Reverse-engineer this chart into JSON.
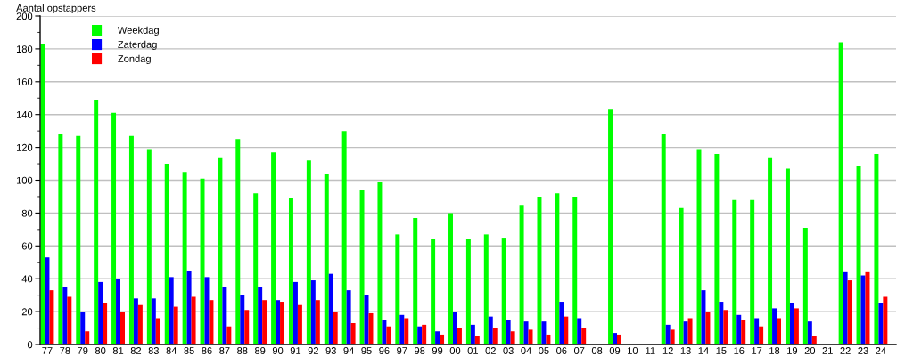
{
  "chart_data": {
    "type": "bar",
    "ylabel": "Aantal opstappers",
    "categories": [
      "77",
      "78",
      "79",
      "80",
      "81",
      "82",
      "83",
      "84",
      "85",
      "86",
      "87",
      "88",
      "89",
      "90",
      "91",
      "92",
      "93",
      "94",
      "95",
      "96",
      "97",
      "98",
      "99",
      "00",
      "01",
      "02",
      "03",
      "04",
      "05",
      "06",
      "07",
      "08",
      "09",
      "10",
      "11",
      "12",
      "13",
      "14",
      "15",
      "16",
      "17",
      "18",
      "19",
      "20",
      "21",
      "22",
      "23",
      "24"
    ],
    "series": [
      {
        "name": "Weekdag",
        "color": "#00ff00",
        "values": [
          183,
          128,
          127,
          149,
          141,
          127,
          119,
          110,
          105,
          101,
          114,
          125,
          92,
          117,
          89,
          112,
          104,
          130,
          94,
          99,
          67,
          77,
          64,
          80,
          64,
          67,
          65,
          85,
          90,
          92,
          90,
          null,
          143,
          null,
          null,
          128,
          83,
          119,
          116,
          88,
          88,
          114,
          107,
          71,
          null,
          184,
          109,
          116
        ]
      },
      {
        "name": "Zaterdag",
        "color": "#0000ff",
        "values": [
          53,
          35,
          20,
          38,
          40,
          28,
          28,
          41,
          45,
          41,
          35,
          30,
          35,
          27,
          38,
          39,
          43,
          33,
          30,
          15,
          18,
          11,
          8,
          20,
          12,
          17,
          15,
          14,
          14,
          26,
          16,
          null,
          7,
          null,
          null,
          12,
          14,
          33,
          26,
          18,
          16,
          22,
          25,
          14,
          null,
          44,
          42,
          25
        ]
      },
      {
        "name": "Zondag",
        "color": "#ff0000",
        "values": [
          33,
          29,
          8,
          25,
          20,
          24,
          16,
          23,
          29,
          27,
          11,
          21,
          27,
          26,
          24,
          27,
          20,
          13,
          19,
          11,
          16,
          12,
          6,
          10,
          5,
          10,
          8,
          9,
          6,
          17,
          10,
          null,
          6,
          null,
          null,
          9,
          16,
          20,
          21,
          15,
          11,
          16,
          22,
          5,
          null,
          39,
          44,
          29
        ]
      }
    ],
    "ylim": [
      0,
      200
    ],
    "yticks": [
      0,
      {
        "value": 10,
        "label": null
      },
      20,
      {
        "value": 30,
        "label": null
      },
      40,
      {
        "value": 50,
        "label": null
      },
      60,
      {
        "value": 70,
        "label": null
      },
      80,
      {
        "value": 90,
        "label": null
      },
      100,
      {
        "value": 110,
        "label": null
      },
      120,
      {
        "value": 130,
        "label": null
      },
      140,
      {
        "value": 150,
        "label": null
      },
      160,
      {
        "value": 170,
        "label": null
      },
      180,
      {
        "value": 190,
        "label": null
      },
      200
    ],
    "grid": "y",
    "legend": "top left"
  }
}
